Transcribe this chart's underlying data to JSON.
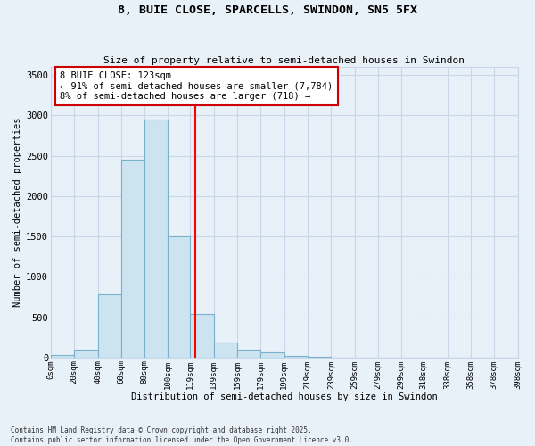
{
  "title": "8, BUIE CLOSE, SPARCELLS, SWINDON, SN5 5FX",
  "subtitle": "Size of property relative to semi-detached houses in Swindon",
  "xlabel": "Distribution of semi-detached houses by size in Swindon",
  "ylabel": "Number of semi-detached properties",
  "footer": "Contains HM Land Registry data © Crown copyright and database right 2025.\nContains public sector information licensed under the Open Government Licence v3.0.",
  "bins": [
    0,
    20,
    40,
    60,
    80,
    100,
    119,
    139,
    159,
    179,
    199,
    219,
    239,
    259,
    279,
    299,
    318,
    338,
    358,
    378,
    398
  ],
  "bar_heights": [
    30,
    100,
    780,
    2450,
    2950,
    1500,
    545,
    190,
    100,
    65,
    15,
    5,
    0,
    0,
    0,
    0,
    0,
    0,
    0,
    0
  ],
  "bar_color": "#cce4f0",
  "bar_edge_color": "#7ab0cc",
  "property_line_x": 123,
  "ylim": [
    0,
    3600
  ],
  "yticks": [
    0,
    500,
    1000,
    1500,
    2000,
    2500,
    3000,
    3500
  ],
  "annotation_title": "8 BUIE CLOSE: 123sqm",
  "annotation_line1": "← 91% of semi-detached houses are smaller (7,784)",
  "annotation_line2": "8% of semi-detached houses are larger (718) →",
  "annotation_box_color": "#ffffff",
  "annotation_box_edge": "#cc0000",
  "grid_color": "#c8d8e8",
  "bg_color": "#e8f0f8"
}
